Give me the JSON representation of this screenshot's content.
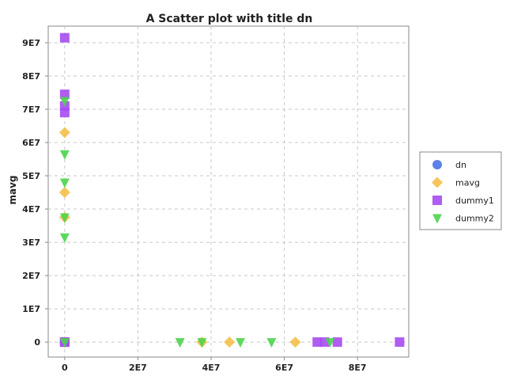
{
  "chart_data": {
    "type": "scatter",
    "title": "A Scatter plot with title dn",
    "xlabel": "",
    "ylabel": "mavg",
    "xlim": [
      -4500000,
      94000000
    ],
    "ylim": [
      -4500000,
      95000000
    ],
    "x_ticks": [
      0,
      20000000,
      40000000,
      60000000,
      80000000
    ],
    "x_tick_labels": [
      "0",
      "2E7",
      "4E7",
      "6E7",
      "8E7"
    ],
    "y_ticks": [
      0,
      10000000,
      20000000,
      30000000,
      40000000,
      50000000,
      60000000,
      70000000,
      80000000,
      90000000
    ],
    "y_tick_labels": [
      "0",
      "1E7",
      "2E7",
      "3E7",
      "4E7",
      "5E7",
      "6E7",
      "7E7",
      "8E7",
      "9E7"
    ],
    "grid": true,
    "legend_position": "right",
    "series": [
      {
        "name": "dn",
        "color": "#4c72e6",
        "marker": "circle",
        "points": [
          [
            0,
            0
          ],
          [
            0,
            0
          ],
          [
            0,
            0
          ]
        ]
      },
      {
        "name": "mavg",
        "color": "#f5c04a",
        "marker": "diamond",
        "points": [
          [
            0,
            63000000
          ],
          [
            0,
            45000000
          ],
          [
            0,
            37500000
          ],
          [
            0,
            0
          ],
          [
            37500000,
            0
          ],
          [
            45000000,
            0
          ],
          [
            63000000,
            0
          ],
          [
            0,
            0
          ]
        ]
      },
      {
        "name": "dummy1",
        "color": "#a64cf0",
        "marker": "square",
        "points": [
          [
            0,
            91500000
          ],
          [
            0,
            74500000
          ],
          [
            0,
            71000000
          ],
          [
            0,
            69000000
          ],
          [
            0,
            0
          ],
          [
            0,
            0
          ],
          [
            69000000,
            0
          ],
          [
            71000000,
            0
          ],
          [
            74500000,
            0
          ],
          [
            91500000,
            0
          ]
        ]
      },
      {
        "name": "dummy2",
        "color": "#4cd44c",
        "marker": "triangle-down",
        "points": [
          [
            0,
            72500000
          ],
          [
            0,
            56500000
          ],
          [
            0,
            48000000
          ],
          [
            0,
            37500000
          ],
          [
            0,
            31500000
          ],
          [
            0,
            0
          ],
          [
            31500000,
            0
          ],
          [
            37500000,
            0
          ],
          [
            48000000,
            0
          ],
          [
            56500000,
            0
          ],
          [
            72500000,
            0
          ]
        ]
      }
    ]
  }
}
